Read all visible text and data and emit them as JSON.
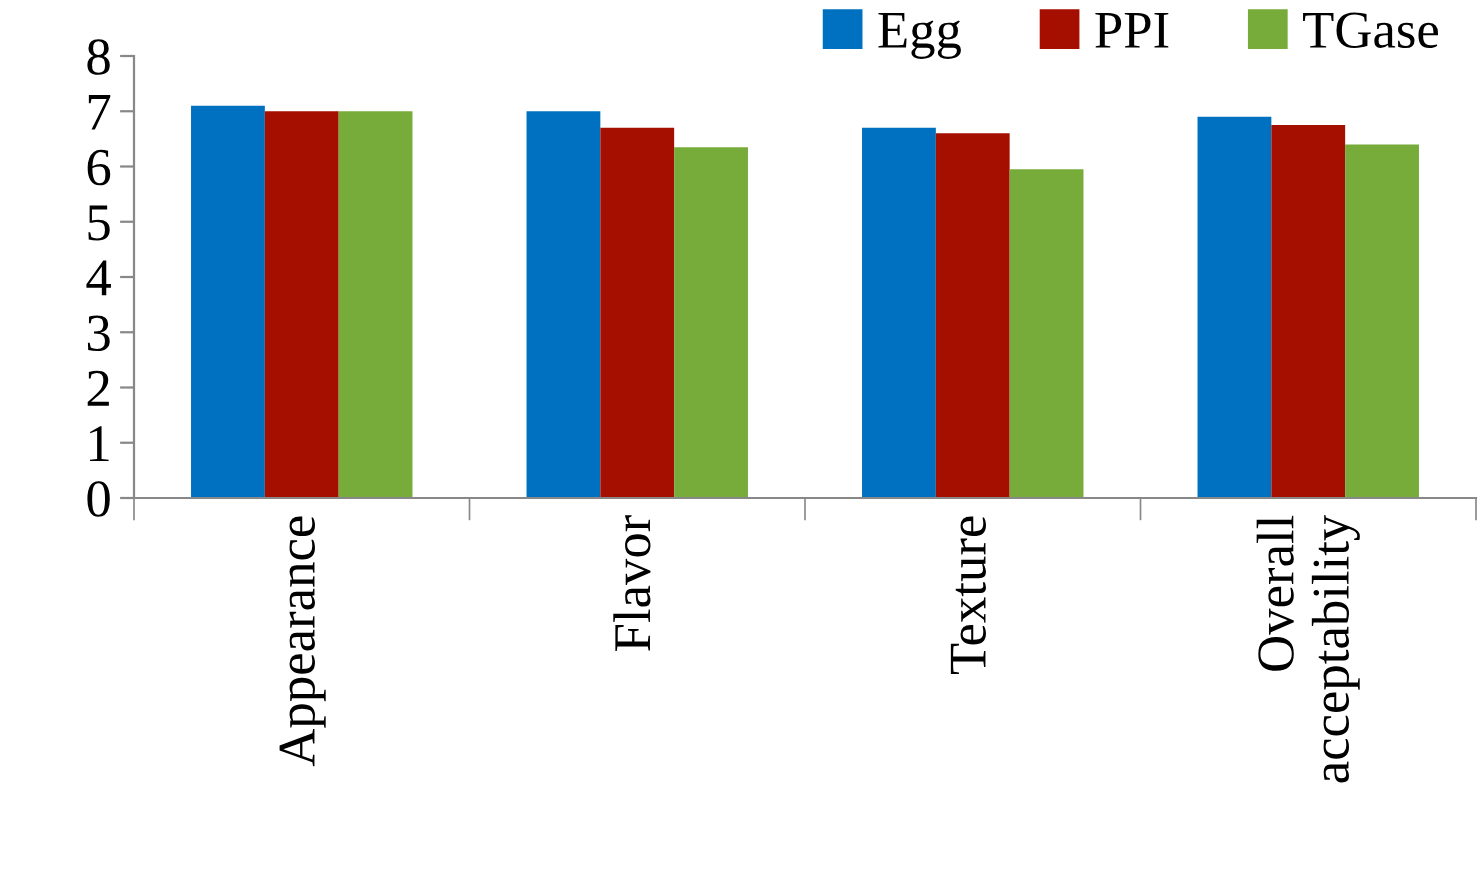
{
  "chart_data": {
    "type": "bar",
    "categories": [
      "Appearance",
      "Flavor",
      "Texture",
      "Overall acceptability"
    ],
    "series": [
      {
        "name": "Egg",
        "color": "#0070c0",
        "values": [
          7.1,
          7.0,
          6.7,
          6.9
        ]
      },
      {
        "name": "PPI",
        "color": "#a50f00",
        "values": [
          7.0,
          6.7,
          6.6,
          6.75
        ]
      },
      {
        "name": "TGase",
        "color": "#77ab3a",
        "values": [
          7.0,
          6.35,
          5.95,
          6.4
        ]
      }
    ],
    "ylim": [
      0,
      8
    ],
    "yticks": [
      0,
      1,
      2,
      3,
      4,
      5,
      6,
      7,
      8
    ],
    "grid": false,
    "legend": "top right"
  }
}
